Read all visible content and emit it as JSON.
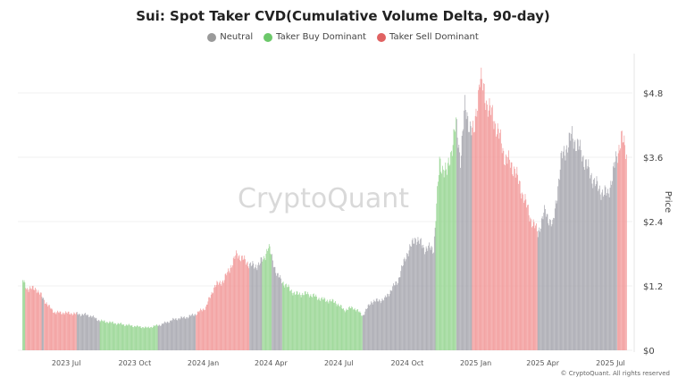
{
  "chart_data": {
    "type": "bar",
    "title": "Sui: Spot Taker CVD(Cumulative Volume Delta, 90-day)",
    "ylabel": "Price",
    "ylim": [
      0,
      5.4
    ],
    "y_ticks": [
      "$0",
      "$1.2",
      "$2.4",
      "$3.6",
      "$4.8"
    ],
    "y_tick_values": [
      0,
      1.2,
      2.4,
      3.6,
      4.8
    ],
    "x_ticks": [
      "2023 Jul",
      "2023 Oct",
      "2024 Jan",
      "2024 Apr",
      "2024 Jul",
      "2024 Oct",
      "2025 Jan",
      "2025 Apr",
      "2025 Jul"
    ],
    "x_tick_dates": [
      "2023-07-01",
      "2023-10-01",
      "2024-01-01",
      "2024-04-01",
      "2024-07-01",
      "2024-10-01",
      "2025-01-01",
      "2025-04-01",
      "2025-07-01"
    ],
    "x_range": [
      "2023-05-03",
      "2025-07-22"
    ],
    "grid": "horizontal",
    "legend_position": "top",
    "legend": [
      {
        "name": "Neutral",
        "color": "#9a9a9a"
      },
      {
        "name": "Taker Buy Dominant",
        "color": "#6cc86a"
      },
      {
        "name": "Taker Sell Dominant",
        "color": "#e06262"
      }
    ],
    "bar_colors": {
      "neutral": "#a8a8b0",
      "buy": "#98d693",
      "sell": "#f29a9a"
    },
    "price_points": [
      [
        "2023-05-03",
        1.3
      ],
      [
        "2023-05-09",
        1.15
      ],
      [
        "2023-05-21",
        1.15
      ],
      [
        "2023-05-29",
        1.0
      ],
      [
        "2023-06-08",
        0.8
      ],
      [
        "2023-06-16",
        0.7
      ],
      [
        "2023-06-26",
        0.7
      ],
      [
        "2023-07-15",
        0.68
      ],
      [
        "2023-08-01",
        0.65
      ],
      [
        "2023-08-15",
        0.55
      ],
      [
        "2023-09-06",
        0.5
      ],
      [
        "2023-09-30",
        0.45
      ],
      [
        "2023-10-18",
        0.42
      ],
      [
        "2023-11-05",
        0.48
      ],
      [
        "2023-11-23",
        0.58
      ],
      [
        "2023-12-11",
        0.62
      ],
      [
        "2023-12-22",
        0.68
      ],
      [
        "2024-01-04",
        0.8
      ],
      [
        "2024-01-16",
        1.2
      ],
      [
        "2024-01-28",
        1.3
      ],
      [
        "2024-02-15",
        1.8
      ],
      [
        "2024-02-27",
        1.65
      ],
      [
        "2024-03-10",
        1.55
      ],
      [
        "2024-03-22",
        1.7
      ],
      [
        "2024-03-28",
        1.95
      ],
      [
        "2024-04-09",
        1.4
      ],
      [
        "2024-04-21",
        1.2
      ],
      [
        "2024-05-03",
        1.05
      ],
      [
        "2024-05-21",
        1.05
      ],
      [
        "2024-06-08",
        0.95
      ],
      [
        "2024-06-26",
        0.9
      ],
      [
        "2024-07-08",
        0.75
      ],
      [
        "2024-07-20",
        0.8
      ],
      [
        "2024-08-02",
        0.65
      ],
      [
        "2024-08-13",
        0.9
      ],
      [
        "2024-08-31",
        0.95
      ],
      [
        "2024-09-18",
        1.3
      ],
      [
        "2024-09-30",
        1.8
      ],
      [
        "2024-10-12",
        2.1
      ],
      [
        "2024-10-24",
        1.9
      ],
      [
        "2024-11-05",
        1.9
      ],
      [
        "2024-11-13",
        3.5
      ],
      [
        "2024-11-23",
        3.3
      ],
      [
        "2024-12-05",
        4.2
      ],
      [
        "2024-12-11",
        3.6
      ],
      [
        "2024-12-17",
        4.5
      ],
      [
        "2024-12-29",
        4.0
      ],
      [
        "2025-01-06",
        5.1
      ],
      [
        "2025-01-16",
        4.6
      ],
      [
        "2025-01-28",
        4.2
      ],
      [
        "2025-02-09",
        3.6
      ],
      [
        "2025-02-21",
        3.4
      ],
      [
        "2025-03-05",
        2.9
      ],
      [
        "2025-03-17",
        2.4
      ],
      [
        "2025-03-25",
        2.2
      ],
      [
        "2025-04-04",
        2.6
      ],
      [
        "2025-04-14",
        2.3
      ],
      [
        "2025-04-26",
        3.6
      ],
      [
        "2025-05-10",
        4.0
      ],
      [
        "2025-05-22",
        3.7
      ],
      [
        "2025-06-03",
        3.3
      ],
      [
        "2025-06-15",
        3.0
      ],
      [
        "2025-06-27",
        2.9
      ],
      [
        "2025-07-09",
        3.6
      ],
      [
        "2025-07-15",
        4.0
      ],
      [
        "2025-07-21",
        3.7
      ]
    ],
    "regimes": [
      [
        "2023-05-03",
        "2023-05-07",
        "buy"
      ],
      [
        "2023-05-07",
        "2023-05-29",
        "sell"
      ],
      [
        "2023-05-29",
        "2023-06-01",
        "neutral"
      ],
      [
        "2023-06-01",
        "2023-07-15",
        "sell"
      ],
      [
        "2023-07-15",
        "2023-08-15",
        "neutral"
      ],
      [
        "2023-08-15",
        "2023-11-01",
        "buy"
      ],
      [
        "2023-11-01",
        "2023-12-22",
        "neutral"
      ],
      [
        "2023-12-22",
        "2024-03-03",
        "sell"
      ],
      [
        "2024-03-03",
        "2024-03-20",
        "neutral"
      ],
      [
        "2024-03-20",
        "2024-04-02",
        "buy"
      ],
      [
        "2024-04-02",
        "2024-04-16",
        "neutral"
      ],
      [
        "2024-04-16",
        "2024-08-02",
        "buy"
      ],
      [
        "2024-08-02",
        "2024-11-08",
        "neutral"
      ],
      [
        "2024-11-08",
        "2024-12-06",
        "buy"
      ],
      [
        "2024-12-06",
        "2024-12-27",
        "neutral"
      ],
      [
        "2024-12-27",
        "2025-03-25",
        "sell"
      ],
      [
        "2025-03-25",
        "2025-07-10",
        "neutral"
      ],
      [
        "2025-07-10",
        "2025-07-22",
        "sell"
      ]
    ]
  },
  "watermark": "CryptoQuant",
  "copyright": "© CryptoQuant. All rights reserved"
}
